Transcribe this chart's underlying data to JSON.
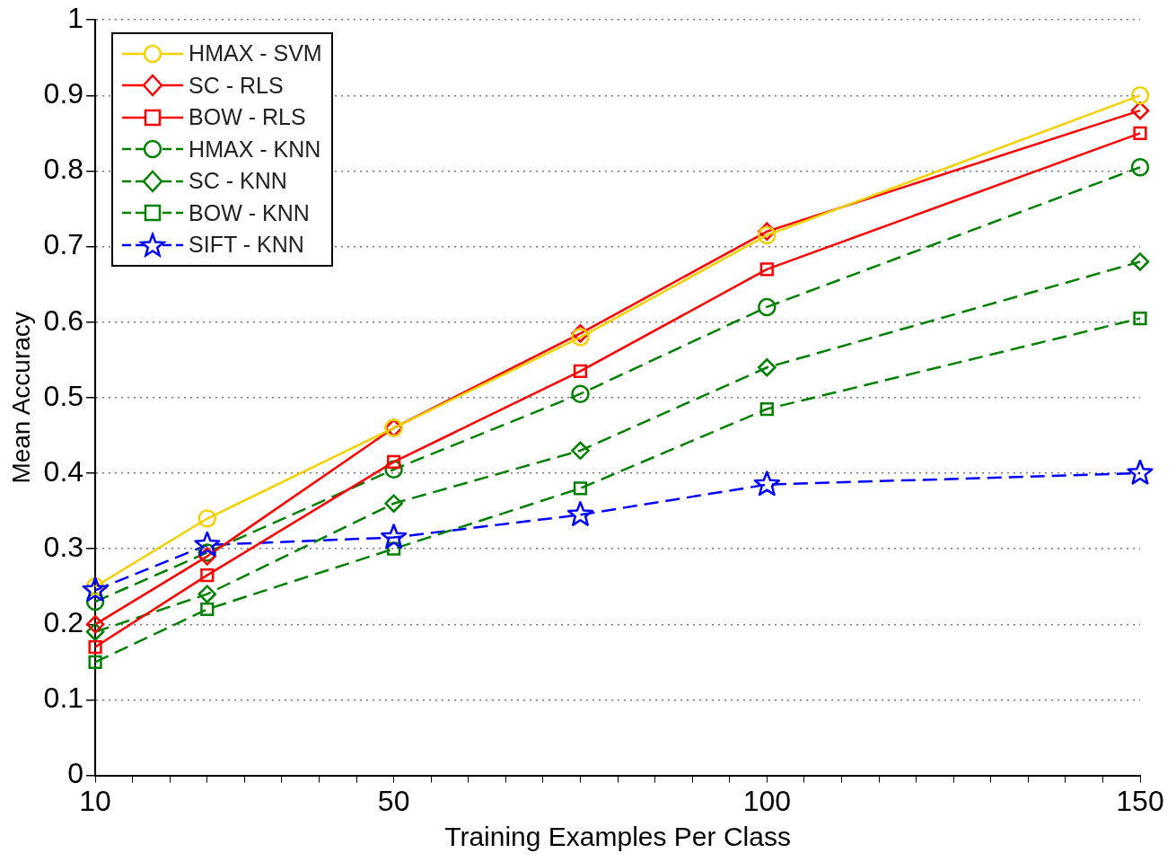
{
  "chart_data": {
    "type": "line",
    "xlabel": "Training Examples Per Class",
    "ylabel": "Mean Accuracy",
    "xlim": [
      10,
      150
    ],
    "xticks": [
      10,
      {
        "value": 15,
        "label": null
      },
      {
        "value": 20,
        "label": null
      },
      {
        "value": 25,
        "label": null
      },
      {
        "value": 30,
        "label": null
      },
      {
        "value": 35,
        "label": null
      },
      {
        "value": 40,
        "label": null
      },
      {
        "value": 45,
        "label": null
      },
      50,
      {
        "value": 55,
        "label": null
      },
      {
        "value": 60,
        "label": null
      },
      {
        "value": 65,
        "label": null
      },
      {
        "value": 70,
        "label": null
      },
      {
        "value": 75,
        "label": null
      },
      {
        "value": 80,
        "label": null
      },
      {
        "value": 85,
        "label": null
      },
      {
        "value": 90,
        "label": null
      },
      {
        "value": 95,
        "label": null
      },
      100,
      {
        "value": 105,
        "label": null
      },
      {
        "value": 110,
        "label": null
      },
      {
        "value": 115,
        "label": null
      },
      {
        "value": 120,
        "label": null
      },
      {
        "value": 125,
        "label": null
      },
      {
        "value": 130,
        "label": null
      },
      {
        "value": 135,
        "label": null
      },
      {
        "value": 140,
        "label": null
      },
      {
        "value": 145,
        "label": null
      },
      150
    ],
    "ylim": [
      0,
      1
    ],
    "yticks": [
      0,
      0.1,
      0.2,
      0.3,
      0.4,
      0.5,
      0.6,
      0.7,
      0.8,
      0.9,
      1
    ],
    "grid": "y",
    "legend": "top left",
    "x": [
      10,
      25,
      50,
      75,
      100,
      150
    ],
    "series": [
      {
        "name": "HMAX - SVM",
        "color": "#f5d000",
        "marker": "circle",
        "line_style": "solid",
        "values": [
          0.25,
          0.34,
          0.46,
          0.58,
          0.715,
          0.9
        ]
      },
      {
        "name": "SC - RLS",
        "color": "#ff0000",
        "marker": "diamond",
        "line_style": "solid",
        "values": [
          0.2,
          0.29,
          0.46,
          0.585,
          0.72,
          0.88
        ]
      },
      {
        "name": "BOW - RLS",
        "color": "#ff0000",
        "marker": "square",
        "line_style": "solid",
        "values": [
          0.17,
          0.265,
          0.415,
          0.535,
          0.67,
          0.85
        ]
      },
      {
        "name": "HMAX - KNN",
        "color": "#008000",
        "marker": "circle",
        "line_style": "dashed",
        "values": [
          0.23,
          0.295,
          0.405,
          0.505,
          0.62,
          0.805
        ]
      },
      {
        "name": "SC - KNN",
        "color": "#008000",
        "marker": "diamond",
        "line_style": "dashed",
        "values": [
          0.19,
          0.24,
          0.36,
          0.43,
          0.54,
          0.68
        ]
      },
      {
        "name": "BOW - KNN",
        "color": "#008000",
        "marker": "square",
        "line_style": "dashed",
        "values": [
          0.15,
          0.22,
          0.3,
          0.38,
          0.485,
          0.605
        ]
      },
      {
        "name": "SIFT - KNN",
        "color": "#0000ff",
        "marker": "star",
        "line_style": "dashed",
        "values": [
          0.245,
          0.305,
          0.315,
          0.345,
          0.385,
          0.4
        ]
      }
    ]
  }
}
